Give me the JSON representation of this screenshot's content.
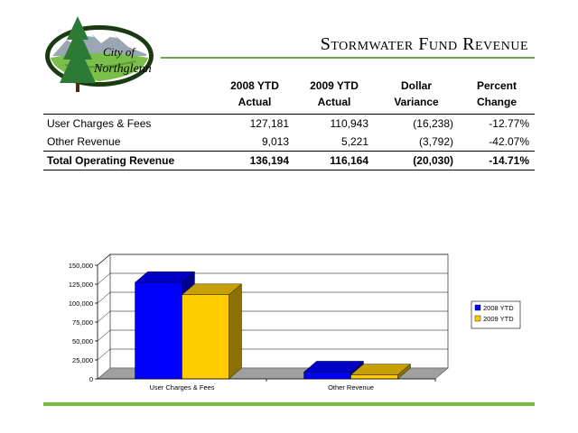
{
  "logo": {
    "text_line1": "City of",
    "text_line2": "Northglenn"
  },
  "page": {
    "title": "Stormwater Fund Revenue"
  },
  "table": {
    "headers": [
      {
        "line1": "",
        "line2": ""
      },
      {
        "line1": "2008 YTD",
        "line2": "Actual"
      },
      {
        "line1": "2009 YTD",
        "line2": "Actual"
      },
      {
        "line1": "Dollar",
        "line2": "Variance"
      },
      {
        "line1": "Percent",
        "line2": "Change"
      }
    ],
    "rows": [
      {
        "label": "User Charges & Fees",
        "y2008": "127,181",
        "y2009": "110,943",
        "variance": "(16,238)",
        "change": "-12.77%"
      },
      {
        "label": "Other Revenue",
        "y2008": "9,013",
        "y2009": "5,221",
        "variance": "(3,792)",
        "change": "-42.07%"
      }
    ],
    "total": {
      "label": "Total Operating Revenue",
      "y2008": "136,194",
      "y2009": "116,164",
      "variance": "(20,030)",
      "change": "-14.71%"
    }
  },
  "chart_data": {
    "type": "bar",
    "categories": [
      "User Charges & Fees",
      "Other Revenue"
    ],
    "series": [
      {
        "name": "2008 YTD",
        "values": [
          127181,
          9013
        ],
        "color": "#0000ff"
      },
      {
        "name": "2009 YTD",
        "values": [
          110943,
          5221
        ],
        "color": "#ffcc00"
      }
    ],
    "ylim": [
      0,
      150000
    ],
    "yticks": [
      0,
      25000,
      50000,
      75000,
      100000,
      125000,
      150000
    ],
    "ytick_labels": [
      "0",
      "25,000",
      "50,000",
      "75,000",
      "100,000",
      "125,000",
      "150,000"
    ],
    "grid": true,
    "legend": "right",
    "three_d": true
  }
}
